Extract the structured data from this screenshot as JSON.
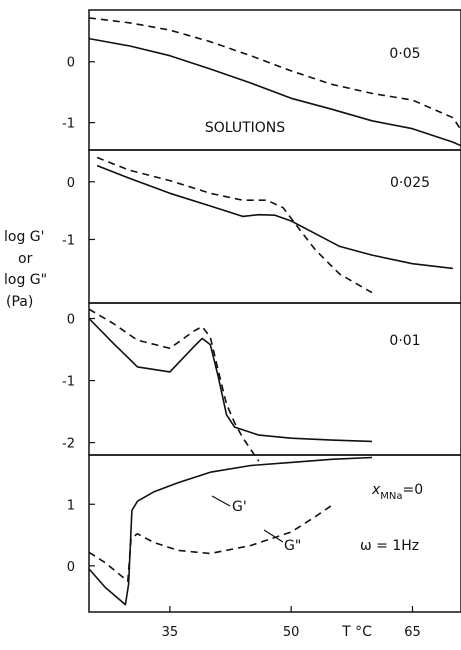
{
  "ylabel_lines": [
    "log G'",
    "or",
    "log G\"",
    "(Pa)"
  ],
  "xlabel": "T  °C",
  "x_ticks": [
    "35",
    "50",
    "65"
  ],
  "colors": {
    "line": "#111111",
    "background": "#ffffff"
  },
  "chart_data": [
    {
      "type": "line",
      "xlim": [
        25,
        71
      ],
      "ylim": [
        -1.45,
        0.85
      ],
      "y_ticks": [
        {
          "value": 0,
          "label": "0"
        },
        {
          "value": -1,
          "label": "-1"
        }
      ],
      "annotations": [
        "0·05",
        "SOLUTIONS"
      ],
      "series": [
        {
          "style": "solid",
          "x": [
            25,
            30,
            35,
            40,
            45,
            50,
            55,
            60,
            65,
            70,
            71
          ],
          "y": [
            0.38,
            0.26,
            0.1,
            -0.12,
            -0.35,
            -0.6,
            -0.78,
            -0.97,
            -1.1,
            -1.32,
            -1.38
          ]
        },
        {
          "style": "dashed",
          "x": [
            25,
            30,
            35,
            40,
            45,
            50,
            55,
            60,
            65,
            70,
            71
          ],
          "y": [
            0.72,
            0.64,
            0.52,
            0.33,
            0.1,
            -0.15,
            -0.37,
            -0.52,
            -0.63,
            -0.92,
            -1.12
          ]
        }
      ]
    },
    {
      "type": "line",
      "xlim": [
        25,
        71
      ],
      "ylim": [
        -2.1,
        0.55
      ],
      "y_ticks": [
        {
          "value": 0,
          "label": "0"
        },
        {
          "value": -1,
          "label": "-1"
        }
      ],
      "annotations": [
        "0·025"
      ],
      "series": [
        {
          "style": "solid",
          "x": [
            26,
            30,
            35,
            40,
            44,
            46,
            48,
            50,
            53,
            56,
            60,
            65,
            70
          ],
          "y": [
            0.28,
            0.06,
            -0.2,
            -0.42,
            -0.6,
            -0.57,
            -0.58,
            -0.68,
            -0.9,
            -1.12,
            -1.27,
            -1.42,
            -1.5
          ]
        },
        {
          "style": "dashed",
          "x": [
            26,
            30,
            35,
            40,
            44,
            47,
            49,
            51,
            53,
            56,
            60
          ],
          "y": [
            0.42,
            0.2,
            0.02,
            -0.2,
            -0.32,
            -0.32,
            -0.45,
            -0.82,
            -1.18,
            -1.6,
            -1.92
          ]
        }
      ]
    },
    {
      "type": "line",
      "xlim": [
        25,
        71
      ],
      "ylim": [
        -2.2,
        0.25
      ],
      "y_ticks": [
        {
          "value": 0,
          "label": "0"
        },
        {
          "value": -1,
          "label": "-1"
        },
        {
          "value": -2,
          "label": "-2"
        }
      ],
      "annotations": [
        "0·01"
      ],
      "series": [
        {
          "style": "solid",
          "x": [
            25,
            28,
            31,
            35,
            38,
            39,
            40,
            41,
            42,
            43,
            46,
            50,
            55,
            60
          ],
          "y": [
            0.0,
            -0.4,
            -0.78,
            -0.86,
            -0.45,
            -0.32,
            -0.42,
            -0.95,
            -1.55,
            -1.75,
            -1.88,
            -1.93,
            -1.96,
            -1.98
          ]
        },
        {
          "style": "dashed",
          "x": [
            25,
            28,
            31,
            35,
            38,
            39,
            40,
            41,
            42,
            43,
            44,
            46
          ],
          "y": [
            0.15,
            -0.08,
            -0.35,
            -0.48,
            -0.2,
            -0.13,
            -0.3,
            -0.85,
            -1.38,
            -1.68,
            -1.92,
            -2.3
          ]
        }
      ]
    },
    {
      "type": "line",
      "xlim": [
        25,
        71
      ],
      "ylim": [
        -0.75,
        1.8
      ],
      "x_ticks": [
        35,
        50,
        65
      ],
      "y_ticks": [
        {
          "value": 1,
          "label": "1"
        },
        {
          "value": 0,
          "label": "0"
        }
      ],
      "annotations": [
        "G'",
        "G\"",
        "x",
        "MNa",
        "=0",
        "ω = 1Hz"
      ],
      "series": [
        {
          "name": "G'",
          "style": "solid",
          "x": [
            25,
            27,
            29.5,
            29.9,
            30.3,
            31,
            33,
            36,
            40,
            45,
            50,
            55,
            60
          ],
          "y": [
            -0.05,
            -0.35,
            -0.63,
            -0.3,
            0.9,
            1.05,
            1.2,
            1.35,
            1.52,
            1.63,
            1.68,
            1.73,
            1.76
          ]
        },
        {
          "name": "G\"",
          "style": "dashed",
          "x": [
            25,
            27,
            29.8,
            30.2,
            31,
            33,
            36,
            40,
            45,
            50,
            53,
            55
          ],
          "y": [
            0.22,
            0.05,
            -0.25,
            0.45,
            0.52,
            0.38,
            0.25,
            0.2,
            0.33,
            0.55,
            0.8,
            0.98
          ]
        }
      ]
    }
  ]
}
